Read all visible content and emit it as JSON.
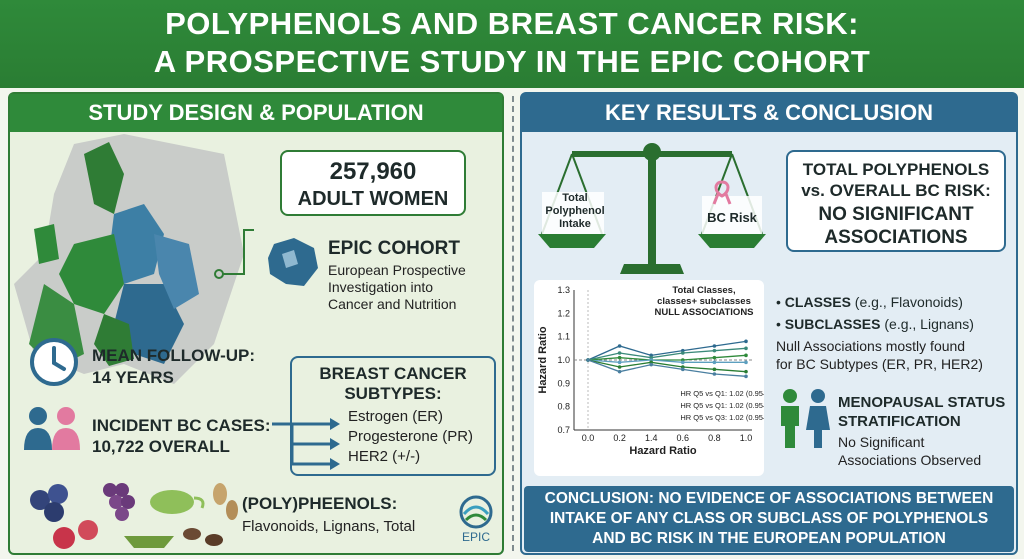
{
  "title": {
    "line1": "POLYPHENOLS AND BREAST CANCER RISK:",
    "line2": "A PROSPECTIVE STUDY IN THE EPIC COHORT"
  },
  "left": {
    "header": "STUDY DESIGN & POPULATION",
    "women": {
      "number": "257,960",
      "label": "ADULT WOMEN"
    },
    "epic": {
      "title": "EPIC COHORT",
      "line1": "European Prospective",
      "line2": "Investigation into",
      "line3": "Cancer and Nutrition"
    },
    "followup": {
      "line1": "MEAN FOLLOW-UP:",
      "line2": "14 YEARS"
    },
    "cases": {
      "line1": "INCIDENT BC CASES:",
      "line2": "10,722 OVERALL"
    },
    "subtypes": {
      "title1": "BREAST CANCER",
      "title2": "SUBTYPES:",
      "items": [
        "Estrogen (ER)",
        "Progesterone (PR)",
        "HER2 (+/-)"
      ]
    },
    "polyphenols": {
      "title": "(POLY)PHEENOLS:",
      "items": "Flavonoids, Lignans, Total"
    },
    "logo_text": "EPIC"
  },
  "right": {
    "header": "KEY RESULTS & CONCLUSION",
    "scale": {
      "left_line1": "Total",
      "left_line2": "Polyphenol",
      "left_line3": "Intake",
      "right": "BC Risk"
    },
    "result_box": {
      "line1": "TOTAL POLYPHENOLS",
      "line2": "vs. OVERALL BC RISK:",
      "line3": "NO SIGNIFICANT",
      "line4": "ASSOCIATIONS"
    },
    "classes": {
      "bold": "CLASSES",
      "rest": " (e.g., Flavonoids)"
    },
    "subclasses": {
      "bold": "SUBCLASSES",
      "rest": " (e.g., Lignans)"
    },
    "null_note": {
      "line1": "Null Associations mostly found",
      "line2": "for BC Subtypes (ER, PR, HER2)"
    },
    "menopause": {
      "line1": "MENOPAUSAL STATUS",
      "line2": "STRATIFICATION",
      "line3": "No Significant",
      "line4": "Associations Observed"
    },
    "conclusion": {
      "line1": "CONCLUSION: NO EVIDENCE OF ASSOCIATIONS BETWEEN",
      "line2": "INTAKE OF ANY CLASS OR SUBCLASS OF POLYPHENOLS",
      "line3": "AND BC RISK IN THE EUROPEAN POPULATION"
    }
  },
  "chart_data": {
    "type": "line",
    "title_lines": [
      "Total Classes,",
      "classes+ subclasses",
      "NULL ASSOCIATIONS"
    ],
    "xlabel": "Hazard Ratio",
    "ylabel": "Hazard Ratio",
    "x_ticks": [
      "0.0",
      "0.2",
      "1.4",
      "0.6",
      "0.8",
      "1.0"
    ],
    "y_ticks": [
      "1.3",
      "1.2",
      "1.1",
      "1.0",
      "0.9",
      "0.8",
      "0.7"
    ],
    "ylim": [
      0.7,
      1.3
    ],
    "reference_line": 1.0,
    "annotations": [
      "HR Q5 vs Q1: 1.02 (0.95–1.11)",
      "HR Q5 vs Q1: 1.02 (0.95–1.11)",
      "HR Q5 vs Q3: 1.02 (0.95–1.11)"
    ],
    "series": [
      {
        "values": [
          1.0,
          1.06,
          1.02,
          1.04,
          1.06,
          1.08
        ]
      },
      {
        "values": [
          1.0,
          1.03,
          1.01,
          1.03,
          1.04,
          1.05
        ]
      },
      {
        "values": [
          1.0,
          1.01,
          1.0,
          1.0,
          1.01,
          1.02
        ]
      },
      {
        "values": [
          1.0,
          0.99,
          1.0,
          0.99,
          0.99,
          0.99
        ]
      },
      {
        "values": [
          1.0,
          0.97,
          0.99,
          0.97,
          0.96,
          0.95
        ]
      },
      {
        "values": [
          1.0,
          0.95,
          0.98,
          0.96,
          0.94,
          0.93
        ]
      }
    ],
    "colors": [
      "#2e6a8f",
      "#3b8a7a",
      "#2f8a3a",
      "#5c9fbf",
      "#2a7d33",
      "#4a7fa0"
    ]
  }
}
